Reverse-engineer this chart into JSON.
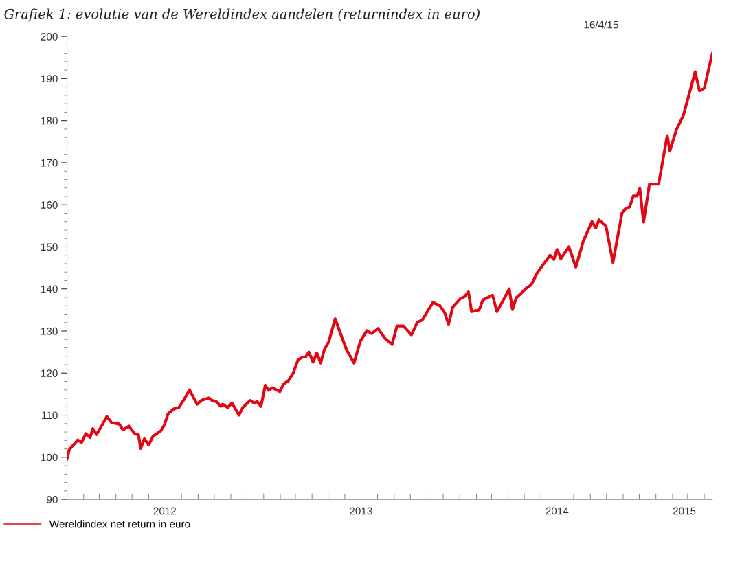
{
  "chart_data": {
    "type": "line",
    "title": "Grafiek 1: evolutie van de Wereldindex aandelen (returnindex in euro)",
    "annotations": [
      "16/4/15"
    ],
    "x": [
      "2012-01-01",
      "2012-01-05",
      "2012-01-21",
      "2012-01-28",
      "2012-02-05",
      "2012-02-13",
      "2012-02-18",
      "2012-02-25",
      "2012-03-06",
      "2012-03-15",
      "2012-03-24",
      "2012-04-07",
      "2012-04-14",
      "2012-04-25",
      "2012-05-06",
      "2012-05-13",
      "2012-05-17",
      "2012-05-24",
      "2012-06-01",
      "2012-06-09",
      "2012-06-23",
      "2012-06-30",
      "2012-07-07",
      "2012-07-18",
      "2012-07-27",
      "2012-08-06",
      "2012-08-16",
      "2012-08-30",
      "2012-09-07",
      "2012-09-21",
      "2012-09-27",
      "2012-10-05",
      "2012-10-13",
      "2012-10-17",
      "2012-10-26",
      "2012-11-03",
      "2012-11-16",
      "2012-11-23",
      "2012-12-07",
      "2012-12-14",
      "2012-12-20",
      "2012-12-27",
      "2013-01-04",
      "2013-01-10",
      "2013-01-17",
      "2013-01-31",
      "2013-02-07",
      "2013-02-16",
      "2013-02-25",
      "2013-03-06",
      "2013-03-15",
      "2013-03-20",
      "2013-03-26",
      "2013-04-03",
      "2013-04-10",
      "2013-04-17",
      "2013-04-24",
      "2013-05-02",
      "2013-05-14",
      "2013-06-04",
      "2013-06-18",
      "2013-06-30",
      "2013-07-12",
      "2013-07-21",
      "2013-08-02",
      "2013-08-15",
      "2013-08-28",
      "2013-09-06",
      "2013-09-18",
      "2013-10-03",
      "2013-10-14",
      "2013-10-23",
      "2013-11-12",
      "2013-11-25",
      "2013-12-04",
      "2013-12-11",
      "2013-12-19",
      "2014-01-02",
      "2014-01-10",
      "2014-01-17",
      "2014-01-23",
      "2014-02-06",
      "2014-02-13",
      "2014-03-03",
      "2014-03-11",
      "2014-03-22",
      "2014-04-03",
      "2014-04-09",
      "2014-04-16",
      "2014-04-24",
      "2014-05-03",
      "2014-05-14",
      "2014-05-25",
      "2014-06-08",
      "2014-06-18",
      "2014-06-25",
      "2014-07-01",
      "2014-07-08",
      "2014-07-23",
      "2014-08-05",
      "2014-08-19",
      "2014-09-04",
      "2014-09-11",
      "2014-09-17",
      "2014-09-30",
      "2014-10-13",
      "2014-10-30",
      "2014-11-05",
      "2014-11-13",
      "2014-11-20",
      "2014-11-27",
      "2014-12-02",
      "2014-12-09",
      "2014-12-20",
      "2015-01-06",
      "2015-01-22",
      "2015-01-27",
      "2015-02-08",
      "2015-02-21",
      "2015-03-15",
      "2015-03-23",
      "2015-04-01",
      "2015-04-16"
    ],
    "series": [
      {
        "name": "Wereldindex net return in euro",
        "color": "#e30613",
        "values": [
          99.5,
          101.8,
          104.1,
          103.5,
          105.6,
          104.7,
          106.8,
          105.4,
          107.6,
          109.7,
          108.2,
          107.9,
          106.5,
          107.4,
          105.6,
          105.3,
          102.1,
          104.4,
          102.9,
          105.0,
          106.2,
          107.6,
          110.3,
          111.5,
          111.8,
          113.8,
          116.0,
          112.6,
          113.5,
          114.1,
          113.5,
          113.2,
          112.1,
          112.6,
          111.8,
          112.9,
          110.0,
          111.8,
          113.5,
          112.9,
          113.2,
          112.1,
          117.1,
          115.9,
          116.5,
          115.6,
          117.4,
          118.2,
          120.0,
          123.2,
          123.8,
          123.8,
          125.0,
          122.6,
          124.8,
          122.4,
          125.6,
          127.4,
          132.9,
          125.6,
          122.4,
          127.6,
          130.1,
          129.4,
          130.6,
          128.2,
          126.8,
          131.2,
          131.2,
          129.1,
          132.1,
          132.6,
          136.8,
          136.0,
          134.3,
          131.6,
          135.7,
          137.7,
          138.2,
          139.3,
          134.6,
          135.0,
          137.4,
          138.5,
          134.6,
          137.1,
          140.0,
          135.1,
          137.9,
          138.8,
          140.0,
          141.0,
          143.8,
          146.3,
          148.0,
          147.0,
          149.4,
          147.2,
          150.0,
          145.2,
          151.4,
          156.0,
          154.5,
          156.4,
          155.0,
          146.3,
          158.1,
          159.0,
          159.5,
          162.1,
          162.1,
          163.9,
          155.9,
          164.9,
          164.9,
          176.4,
          172.8,
          177.8,
          181.2,
          191.6,
          187.1,
          187.7,
          196.0
        ]
      }
    ],
    "xlim": [
      "2012-01-01",
      "2015-04-16"
    ],
    "xticks": [
      {
        "value": "2012-07-01",
        "label": "2012"
      },
      {
        "value": "2013-07-01",
        "label": "2013"
      },
      {
        "value": "2014-07-01",
        "label": "2014"
      },
      {
        "value": "2015-02-23",
        "label": "2015"
      }
    ],
    "ylim": [
      90,
      200
    ],
    "yticks": [
      90,
      100,
      110,
      120,
      130,
      140,
      150,
      160,
      170,
      180,
      190,
      200
    ],
    "grid": false,
    "legend": "bottom left",
    "line_style": "solid",
    "marker": "none"
  }
}
